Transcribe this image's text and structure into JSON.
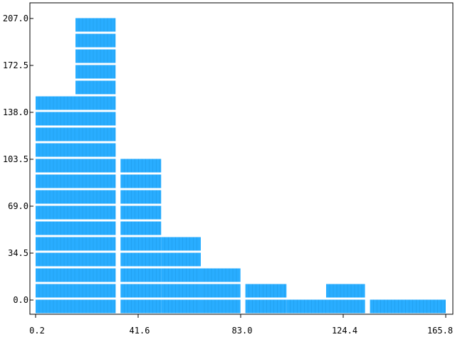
{
  "chart_data": {
    "type": "bar",
    "title": "",
    "xlabel": "",
    "ylabel": "",
    "x_ticks": [
      "0.2",
      "41.6",
      "83.0",
      "124.4",
      "165.8"
    ],
    "y_ticks": [
      "207.0",
      "172.5",
      "138.0",
      "103.5",
      "69.0",
      "34.5",
      "0.0"
    ],
    "xlim": [
      0.2,
      165.8
    ],
    "ylim": [
      0,
      207
    ],
    "bar_color": "#29adff",
    "grid": false,
    "note": "Stacked-block histogram: each column is a stack of block rows.",
    "series": [
      {
        "x_start": 0.2,
        "x_end": 32.5,
        "blocks": 14
      },
      {
        "x_start": 16.3,
        "x_end": 32.5,
        "blocks": 19
      },
      {
        "x_start": 34.5,
        "x_end": 50.9,
        "blocks": 10
      },
      {
        "x_start": 50.9,
        "x_end": 66.9,
        "blocks": 5
      },
      {
        "x_start": 66.9,
        "x_end": 82.9,
        "blocks": 3
      },
      {
        "x_start": 84.9,
        "x_end": 101.5,
        "blocks": 2
      },
      {
        "x_start": 101.5,
        "x_end": 133.2,
        "blocks": 1
      },
      {
        "x_start": 117.5,
        "x_end": 133.2,
        "blocks": 2
      },
      {
        "x_start": 135.2,
        "x_end": 165.8,
        "blocks": 1
      }
    ]
  }
}
